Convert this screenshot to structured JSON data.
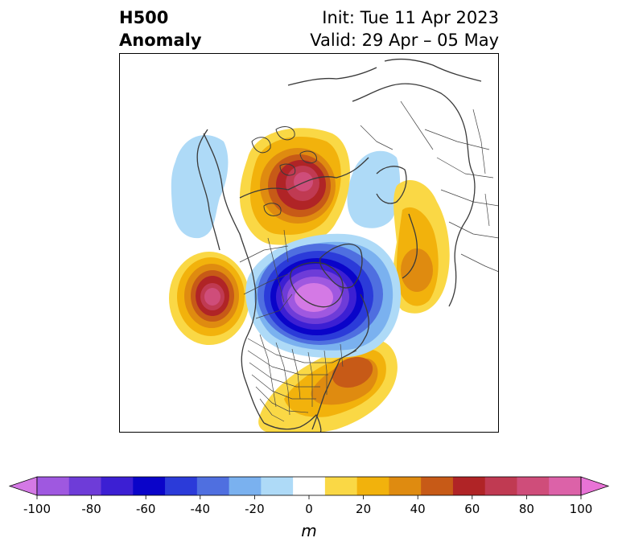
{
  "title": {
    "left_line1": "H500",
    "left_line2": "Anomaly",
    "right_line1": "Init: Tue 11 Apr 2023",
    "right_line2": "Valid: 29 Apr – 05 May"
  },
  "map": {
    "projection": "north-polar-stereographic",
    "anomalies": [
      {
        "name": "ridge-central-canada",
        "value": 80
      },
      {
        "name": "ridge-northeast-pacific",
        "value": 80
      },
      {
        "name": "ridge-southeast-us",
        "value": 50
      },
      {
        "name": "ridge-east-siberia",
        "value": 40
      },
      {
        "name": "trough-hudson-bay",
        "value": -100
      },
      {
        "name": "trough-alaska-bering",
        "value": -20
      },
      {
        "name": "trough-greenland-east",
        "value": -20
      }
    ]
  },
  "colorbar": {
    "unit": "m",
    "ticks": [
      "-100",
      "-80",
      "-60",
      "-40",
      "-20",
      "0",
      "20",
      "40",
      "60",
      "80",
      "100"
    ],
    "colors": [
      "#d479e5",
      "#9f58e0",
      "#6e3cd8",
      "#3c1fd3",
      "#0a04c9",
      "#2b3bd9",
      "#4f6fe0",
      "#7ab1ef",
      "#aedaf7",
      "#ffffff",
      "#fad845",
      "#f2b20c",
      "#df8b10",
      "#c75a17",
      "#b02426",
      "#c03a52",
      "#cf4d7a",
      "#dc62a8",
      "#e873d6"
    ]
  }
}
